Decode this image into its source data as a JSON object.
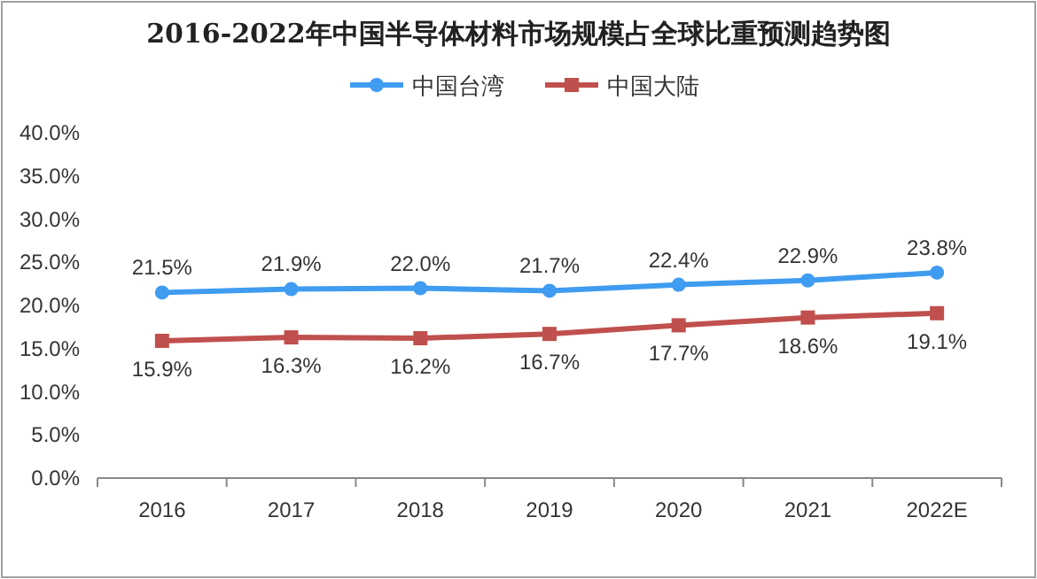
{
  "chart_data": {
    "type": "line",
    "title": "2016-2022年中国半导体材料市场规模占全球比重预测趋势图",
    "categories": [
      "2016",
      "2017",
      "2018",
      "2019",
      "2020",
      "2021",
      "2022E"
    ],
    "series": [
      {
        "name": "中国台湾",
        "color": "#3f9cf0",
        "marker": "circle",
        "values": [
          21.5,
          21.9,
          22.0,
          21.7,
          22.4,
          22.9,
          23.8
        ],
        "value_labels": [
          "21.5%",
          "21.9%",
          "22.0%",
          "21.7%",
          "22.4%",
          "22.9%",
          "23.8%"
        ]
      },
      {
        "name": "中国大陆",
        "color": "#c0504d",
        "marker": "square",
        "values": [
          15.9,
          16.3,
          16.2,
          16.7,
          17.7,
          18.6,
          19.1
        ],
        "value_labels": [
          "15.9%",
          "16.3%",
          "16.2%",
          "16.7%",
          "17.7%",
          "18.6%",
          "19.1%"
        ]
      }
    ],
    "ylim": [
      0,
      40
    ],
    "yticks": [
      {
        "value": 0,
        "label": "0.0%"
      },
      {
        "value": 5,
        "label": "5.0%"
      },
      {
        "value": 10,
        "label": "10.0%"
      },
      {
        "value": 15,
        "label": "15.0%"
      },
      {
        "value": 20,
        "label": "20.0%"
      },
      {
        "value": 25,
        "label": "25.0%"
      },
      {
        "value": 30,
        "label": "30.0%"
      },
      {
        "value": 35,
        "label": "35.0%"
      },
      {
        "value": 40,
        "label": "40.0%"
      }
    ],
    "legend": "top",
    "grid": false
  }
}
